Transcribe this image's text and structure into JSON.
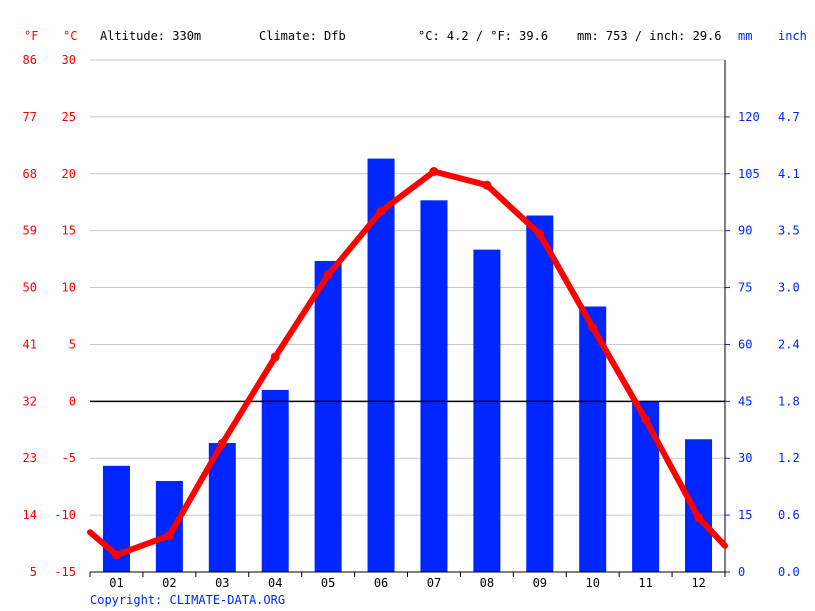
{
  "header": {
    "altitude": "Altitude: 330m",
    "climate": "Climate: Dfb",
    "temp_summary": "°C: 4.2 / °F: 39.6",
    "precip_summary": "mm: 753 / inch: 29.6"
  },
  "units": {
    "f": "°F",
    "c": "°C",
    "mm": "mm",
    "inch": "inch"
  },
  "copyright": "Copyright: CLIMATE-DATA.ORG",
  "colors": {
    "temp": "#ff0000",
    "precip": "#0026ff",
    "axis_right": "#0026ff",
    "axis_left": "#ff0000",
    "grid": "#c8c8c8",
    "zero": "#000000"
  },
  "chart_data": {
    "type": "bar",
    "categories": [
      "01",
      "02",
      "03",
      "04",
      "05",
      "06",
      "07",
      "08",
      "09",
      "10",
      "11",
      "12"
    ],
    "precip_mm": [
      28,
      24,
      34,
      48,
      82,
      109,
      98,
      85,
      94,
      70,
      45,
      35
    ],
    "temp_c": [
      -13.5,
      -11.8,
      -3.7,
      3.9,
      11.1,
      16.7,
      20.2,
      19.0,
      14.7,
      6.5,
      -1.6,
      -10.2
    ],
    "temp_ends": [
      -11.5,
      -12.7
    ],
    "ylim_c": [
      -15,
      30
    ],
    "ylim_mm": [
      0,
      135
    ],
    "left_ticks_c": [
      "30",
      "25",
      "20",
      "15",
      "10",
      "5",
      "0",
      "-5",
      "-10",
      "-15"
    ],
    "left_ticks_f": [
      "86",
      "77",
      "68",
      "59",
      "50",
      "41",
      "32",
      "23",
      "14",
      "5"
    ],
    "right_ticks_mm": [
      "120",
      "105",
      "90",
      "75",
      "60",
      "45",
      "30",
      "15",
      "0"
    ],
    "right_ticks_inch": [
      "4.7",
      "4.1",
      "3.5",
      "3.0",
      "2.4",
      "1.8",
      "1.2",
      "0.6",
      "0.0"
    ]
  }
}
